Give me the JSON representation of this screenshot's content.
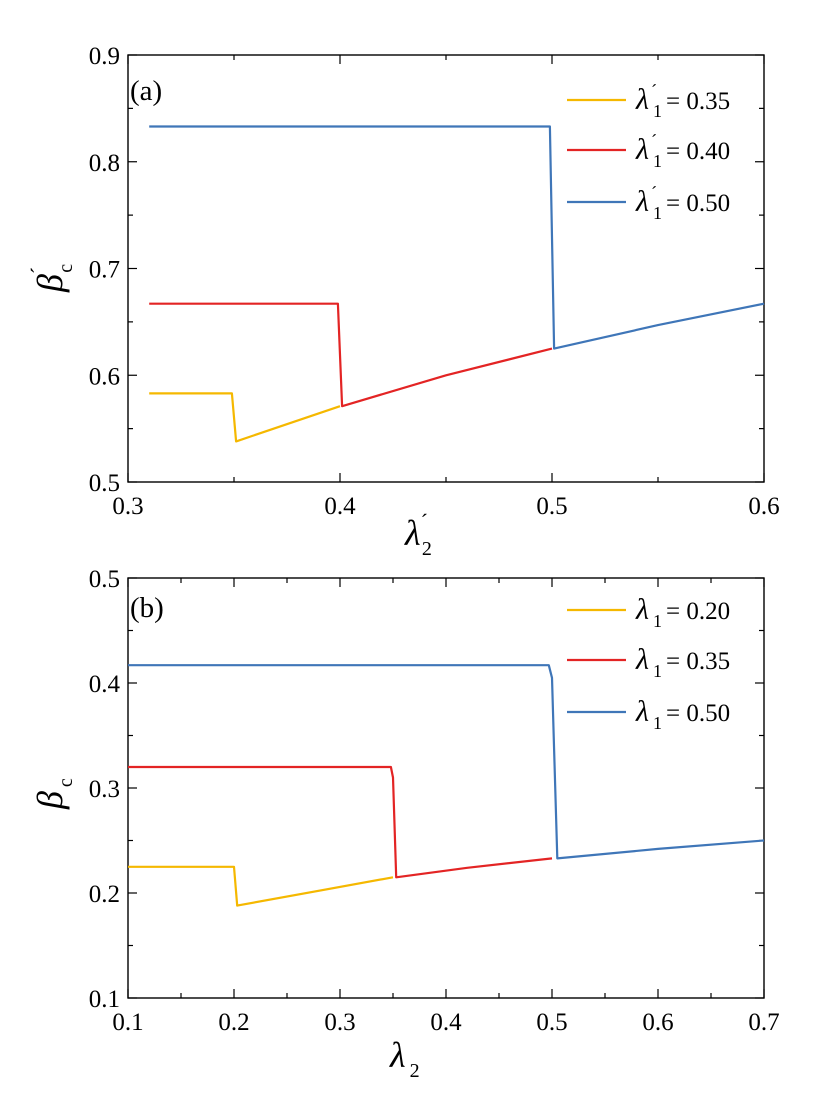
{
  "chart_data": [
    {
      "type": "line",
      "panel_label": "(a)",
      "xlabel": {
        "symbol": "λ",
        "prime": "´",
        "sub": "2"
      },
      "ylabel": {
        "symbol": "β",
        "prime": "´",
        "sub": "c"
      },
      "xlim": [
        0.3,
        0.6
      ],
      "ylim": [
        0.5,
        0.9
      ],
      "xticks": [
        "0.3",
        "0.4",
        "0.5",
        "0.6"
      ],
      "yticks": [
        "0.5",
        "0.6",
        "0.7",
        "0.8",
        "0.9"
      ],
      "legend_position": "top-right",
      "series": [
        {
          "name": "λ´1 = 0.35",
          "legend_symbol": "λ",
          "legend_prime": "´",
          "legend_sub": "1",
          "legend_value": "= 0.35",
          "color": "#F5B800",
          "x": [
            0.31,
            0.349,
            0.351,
            0.4
          ],
          "y": [
            0.583,
            0.583,
            0.538,
            0.571
          ]
        },
        {
          "name": "λ´1 = 0.40",
          "legend_symbol": "λ",
          "legend_prime": "´",
          "legend_sub": "1",
          "legend_value": "= 0.40",
          "color": "#E32424",
          "x": [
            0.31,
            0.399,
            0.401,
            0.45,
            0.5
          ],
          "y": [
            0.667,
            0.667,
            0.571,
            0.6,
            0.625
          ]
        },
        {
          "name": "λ´1 = 0.50",
          "legend_symbol": "λ",
          "legend_prime": "´",
          "legend_sub": "1",
          "legend_value": "= 0.50",
          "color": "#3F76B8",
          "x": [
            0.31,
            0.499,
            0.501,
            0.55,
            0.6
          ],
          "y": [
            0.833,
            0.833,
            0.625,
            0.647,
            0.667
          ]
        }
      ]
    },
    {
      "type": "line",
      "panel_label": "(b)",
      "xlabel": {
        "symbol": "λ",
        "prime": "",
        "sub": "2"
      },
      "ylabel": {
        "symbol": "β",
        "prime": "",
        "sub": "c"
      },
      "xlim": [
        0.1,
        0.7
      ],
      "ylim": [
        0.1,
        0.5
      ],
      "xticks": [
        "0.1",
        "0.2",
        "0.3",
        "0.4",
        "0.5",
        "0.6",
        "0.7"
      ],
      "yticks": [
        "0.1",
        "0.2",
        "0.3",
        "0.4",
        "0.5"
      ],
      "legend_position": "top-right",
      "series": [
        {
          "name": "λ1 = 0.20",
          "legend_symbol": "λ",
          "legend_prime": "",
          "legend_sub": "1",
          "legend_value": "= 0.20",
          "color": "#F5B800",
          "x": [
            0.1,
            0.2,
            0.203,
            0.35
          ],
          "y": [
            0.225,
            0.225,
            0.188,
            0.215
          ]
        },
        {
          "name": "λ1 = 0.35",
          "legend_symbol": "λ",
          "legend_prime": "",
          "legend_sub": "1",
          "legend_value": "= 0.35",
          "color": "#E32424",
          "x": [
            0.1,
            0.348,
            0.35,
            0.353,
            0.42,
            0.5
          ],
          "y": [
            0.32,
            0.32,
            0.31,
            0.215,
            0.224,
            0.233
          ]
        },
        {
          "name": "λ1 = 0.50",
          "legend_symbol": "λ",
          "legend_prime": "",
          "legend_sub": "1",
          "legend_value": "= 0.50",
          "color": "#3F76B8",
          "x": [
            0.1,
            0.497,
            0.5,
            0.505,
            0.6,
            0.7
          ],
          "y": [
            0.417,
            0.417,
            0.405,
            0.233,
            0.242,
            0.25
          ]
        }
      ]
    }
  ]
}
